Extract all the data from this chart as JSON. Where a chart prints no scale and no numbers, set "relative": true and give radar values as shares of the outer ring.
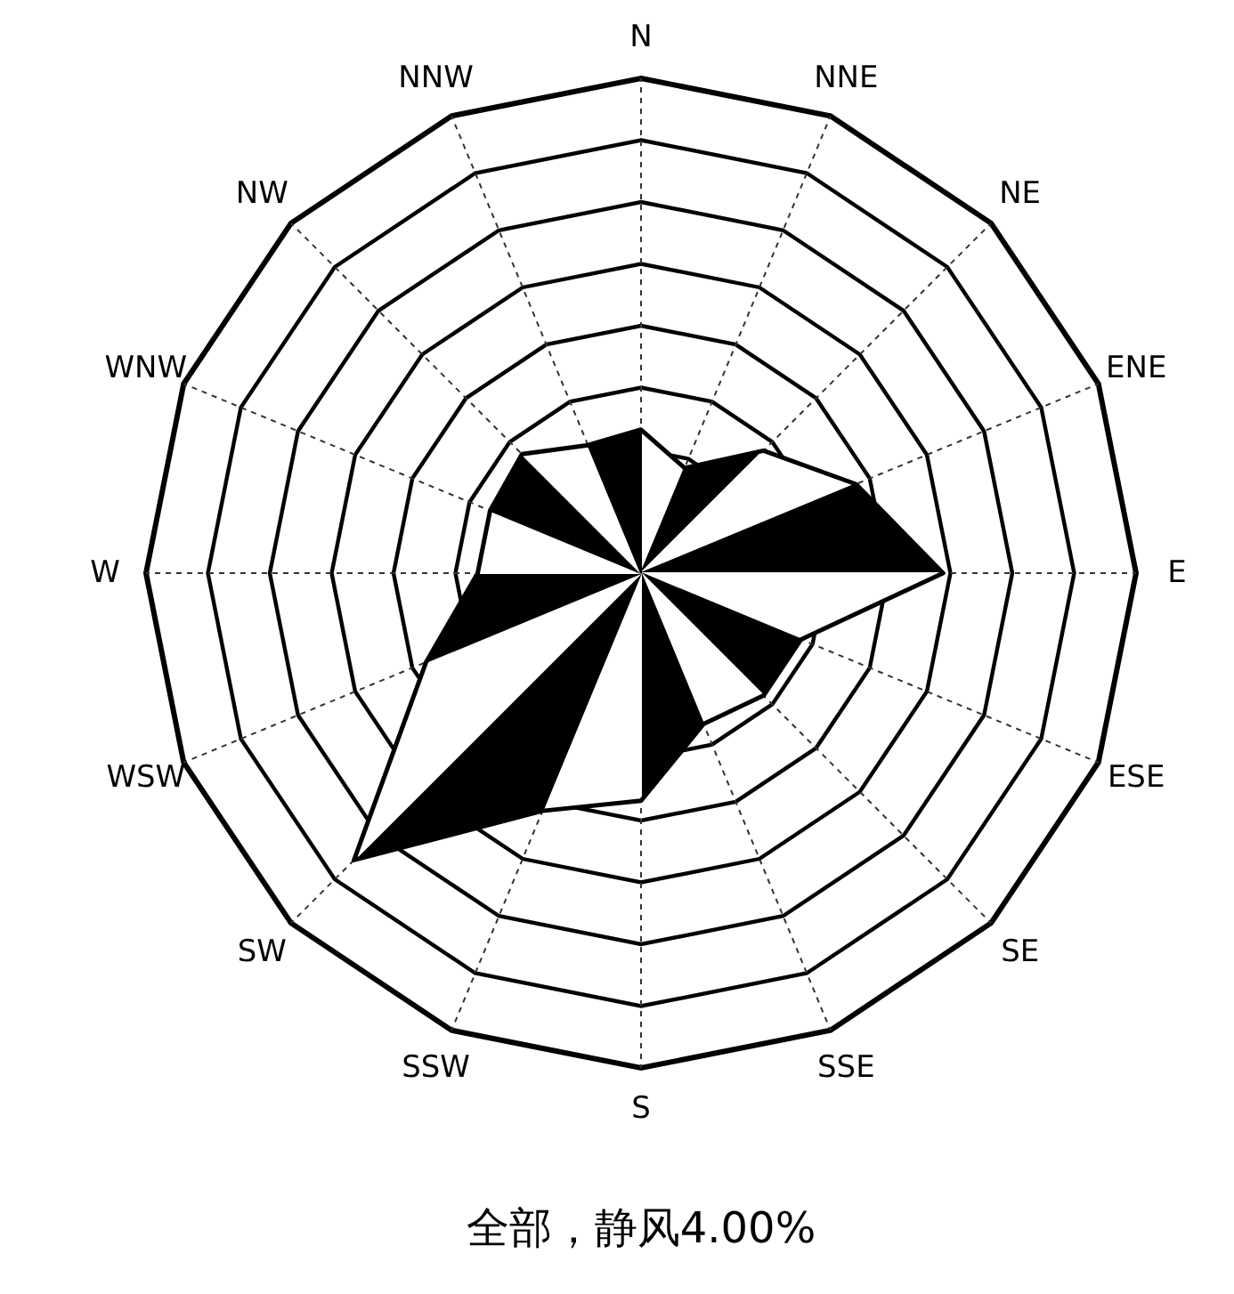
{
  "chart_data": {
    "type": "radar",
    "title": "全部，静风4.00%",
    "relative": true,
    "categories": [
      "N",
      "NNE",
      "NE",
      "ENE",
      "E",
      "ESE",
      "SE",
      "SSE",
      "S",
      "SSW",
      "SW",
      "WSW",
      "W",
      "WNW",
      "NW",
      "NNW"
    ],
    "series": [
      {
        "color": "#000000",
        "values": [
          0.29,
          0.23,
          0.35,
          0.47,
          0.61,
          0.35,
          0.35,
          0.33,
          0.46,
          0.52,
          0.82,
          0.47,
          0.33,
          0.33,
          0.34,
          0.28
        ]
      }
    ]
  }
}
